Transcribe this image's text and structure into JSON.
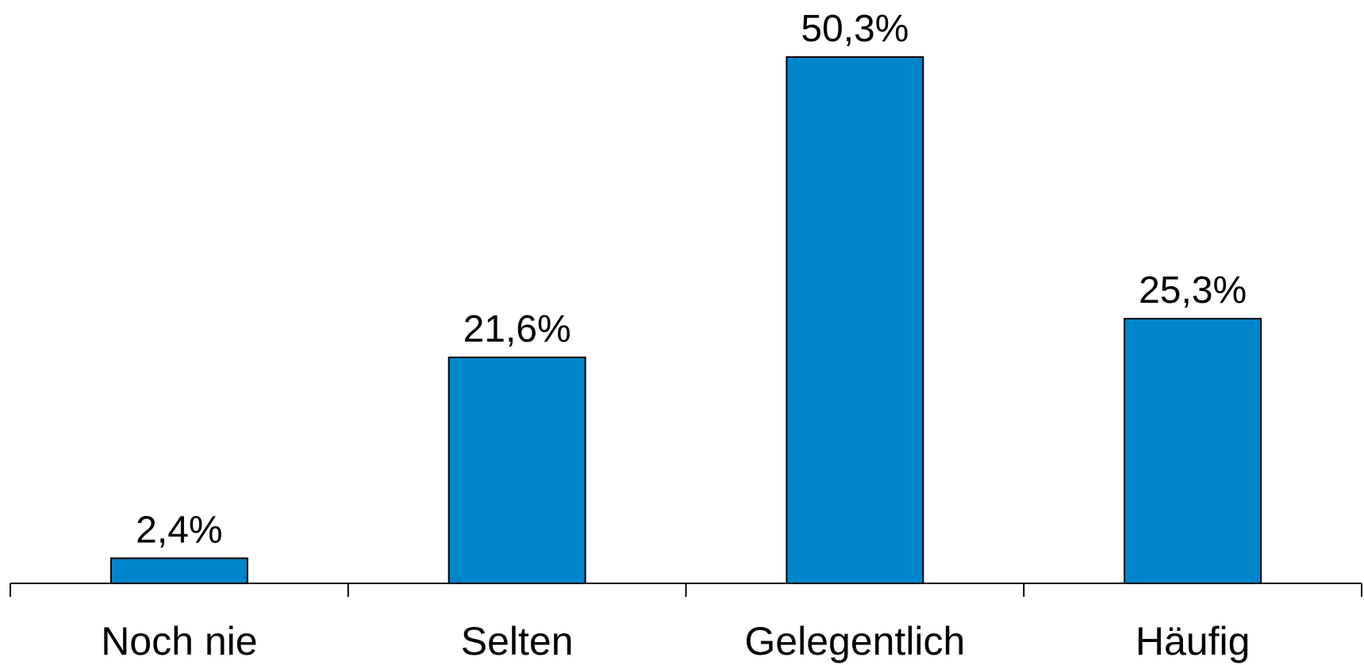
{
  "chart_data": {
    "type": "bar",
    "categories": [
      "Noch nie",
      "Selten",
      "Gelegentlich",
      "Häufig"
    ],
    "values": [
      2.4,
      21.6,
      50.3,
      25.3
    ],
    "data_labels": [
      "2,4%",
      "21,6%",
      "50,3%",
      "25,3%"
    ],
    "title": "",
    "xlabel": "",
    "ylabel": "",
    "ylim": [
      0,
      50.3
    ],
    "grid": false,
    "legend": "none",
    "bar_color": "#0085CB"
  }
}
